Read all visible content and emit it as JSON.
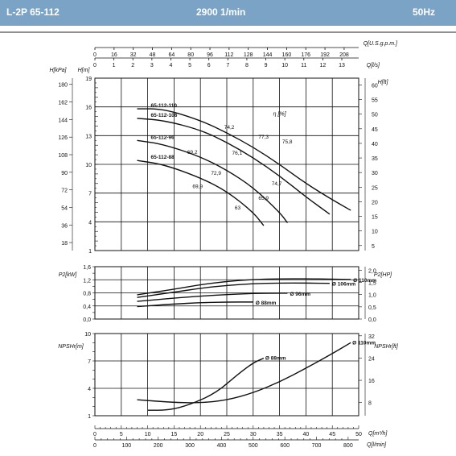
{
  "header": {
    "model": "L-2P 65-112",
    "speed": "2900 1/min",
    "frequency": "50Hz"
  },
  "colors": {
    "header_bg": "#7ba3c6",
    "header_text": "#ffffff",
    "curve": "#111111",
    "grid": "#111111"
  },
  "chart_data": [
    {
      "type": "line",
      "title": "Head / Flow",
      "top_axes": [
        {
          "label": "Q[U.S.g.p.m.]",
          "ticks": [
            "0",
            "16",
            "32",
            "48",
            "64",
            "80",
            "96",
            "112",
            "128",
            "144",
            "160",
            "176",
            "192",
            "208"
          ]
        },
        {
          "label": "Q[l/s]",
          "ticks": [
            "0",
            "1",
            "2",
            "3",
            "4",
            "5",
            "6",
            "7",
            "8",
            "9",
            "10",
            "11",
            "12",
            "13"
          ]
        }
      ],
      "ylabel_left_kpa": "H[kPa]",
      "yticks_left_kpa": [
        "180",
        "162",
        "144",
        "126",
        "108",
        "90",
        "72",
        "54",
        "36",
        "18"
      ],
      "ylabel": "H[m]",
      "yticks": [
        "19",
        "16",
        "13",
        "10",
        "7",
        "4",
        "1"
      ],
      "ylim": [
        1,
        19
      ],
      "ylabel_right": "H[ft]",
      "yticks_right": [
        "60",
        "55",
        "50",
        "45",
        "40",
        "35",
        "30",
        "25",
        "20",
        "15",
        "10",
        "5"
      ],
      "xlim": [
        0,
        50
      ],
      "efficiency_label": "η [%]",
      "series": [
        {
          "name": "65-112-110",
          "x": [
            8,
            13,
            20,
            25,
            30,
            35,
            40,
            45,
            48.5
          ],
          "y": [
            15.8,
            15.8,
            14.6,
            13.3,
            11.8,
            10.0,
            8.0,
            6.3,
            5.2
          ]
        },
        {
          "name": "65-112-106",
          "x": [
            8,
            13,
            20,
            25,
            30,
            35,
            40,
            44.5
          ],
          "y": [
            14.8,
            14.6,
            13.6,
            12.3,
            10.7,
            8.8,
            6.6,
            4.8
          ]
        },
        {
          "name": "65-112-96",
          "x": [
            8,
            13,
            20,
            25,
            30,
            35,
            36.5
          ],
          "y": [
            12.5,
            12.1,
            10.8,
            9.4,
            7.6,
            5.0,
            3.9
          ]
        },
        {
          "name": "65-112-88",
          "x": [
            8,
            13,
            20,
            25,
            30,
            32
          ],
          "y": [
            10.4,
            10.0,
            8.6,
            7.2,
            5.0,
            3.6
          ]
        }
      ],
      "efficiency_labels": [
        {
          "text": "69,2",
          "x": 17.5,
          "y": 11.1
        },
        {
          "text": "69,9",
          "x": 18.5,
          "y": 7.5
        },
        {
          "text": "72,9",
          "x": 22.0,
          "y": 8.9
        },
        {
          "text": "74,2",
          "x": 24.5,
          "y": 13.7
        },
        {
          "text": "76,1",
          "x": 26.0,
          "y": 11.0
        },
        {
          "text": "77,3",
          "x": 31.0,
          "y": 12.7
        },
        {
          "text": "75,8",
          "x": 35.5,
          "y": 12.2
        },
        {
          "text": "74,7",
          "x": 33.5,
          "y": 7.8
        },
        {
          "text": "65,9",
          "x": 31.0,
          "y": 6.3
        },
        {
          "text": "63",
          "x": 26.5,
          "y": 5.3
        }
      ]
    },
    {
      "type": "line",
      "title": "Power",
      "ylabel": "P2[kW]",
      "yticks": [
        "1,6",
        "1,2",
        "0,8",
        "0,4",
        "0,0"
      ],
      "ylim": [
        0,
        1.6
      ],
      "ylabel_right": "P2[HP]",
      "yticks_right": [
        "2,0",
        "1,5",
        "1,0",
        "0,5",
        "0,0"
      ],
      "xlim": [
        0,
        50
      ],
      "series": [
        {
          "name": "Ø 110mm",
          "x": [
            8,
            15,
            20,
            25,
            30,
            35,
            40,
            45,
            48.5
          ],
          "y": [
            0.74,
            0.91,
            1.05,
            1.15,
            1.21,
            1.23,
            1.23,
            1.22,
            1.21
          ]
        },
        {
          "name": "Ø 106mm",
          "x": [
            8,
            15,
            20,
            25,
            30,
            35,
            40,
            44.5
          ],
          "y": [
            0.66,
            0.82,
            0.94,
            1.03,
            1.08,
            1.1,
            1.1,
            1.09
          ]
        },
        {
          "name": "Ø 96mm",
          "x": [
            8,
            15,
            20,
            25,
            30,
            35,
            36.5
          ],
          "y": [
            0.54,
            0.64,
            0.7,
            0.75,
            0.78,
            0.79,
            0.79
          ]
        },
        {
          "name": "Ø 88mm",
          "x": [
            8,
            15,
            20,
            25,
            30
          ],
          "y": [
            0.38,
            0.46,
            0.5,
            0.52,
            0.52
          ]
        }
      ]
    },
    {
      "type": "line",
      "title": "NPSH",
      "ylabel": "NPSHr[m]",
      "yticks": [
        "10",
        "7",
        "4",
        "1"
      ],
      "ylim": [
        1,
        10
      ],
      "ylabel_right": "NPSHr[ft]",
      "yticks_right": [
        "32",
        "24",
        "16",
        "8"
      ],
      "xlim": [
        0,
        50
      ],
      "x_ticks_m3h": [
        "0",
        "5",
        "10",
        "15",
        "20",
        "25",
        "30",
        "35",
        "40",
        "45",
        "50"
      ],
      "xlabel": "Q[m³/h]",
      "x_ticks_lmin": [
        "0",
        "100",
        "200",
        "300",
        "400",
        "500",
        "600",
        "700",
        "800"
      ],
      "xlabel2": "Q[l/min]",
      "series": [
        {
          "name": "Ø 110mm",
          "x": [
            8,
            15,
            20,
            25,
            30,
            35,
            40,
            45,
            48.5
          ],
          "y": [
            2.75,
            2.45,
            2.4,
            2.7,
            3.5,
            4.7,
            6.2,
            7.8,
            9.0
          ]
        },
        {
          "name": "Ø 88mm",
          "x": [
            10,
            14,
            18,
            23,
            27,
            30,
            32
          ],
          "y": [
            1.6,
            1.6,
            2.2,
            3.5,
            5.5,
            6.8,
            7.3
          ]
        }
      ]
    }
  ]
}
